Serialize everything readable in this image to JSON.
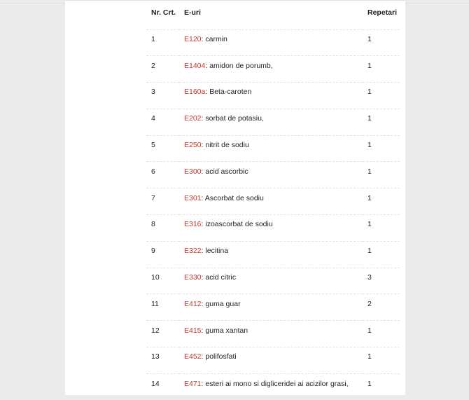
{
  "table": {
    "headers": [
      "Nr. Crt.",
      "E-uri",
      "Repetari"
    ],
    "rows": [
      {
        "nr": "1",
        "code": "E120",
        "name": ": carmin",
        "rep": "1"
      },
      {
        "nr": "2",
        "code": "E1404",
        "name": ": amidon de porumb,",
        "rep": "1"
      },
      {
        "nr": "3",
        "code": "E160a",
        "name": ": Beta-caroten",
        "rep": "1"
      },
      {
        "nr": "4",
        "code": "E202",
        "name": ": sorbat de potasiu,",
        "rep": "1"
      },
      {
        "nr": "5",
        "code": "E250",
        "name": ": nitrit de sodiu",
        "rep": "1"
      },
      {
        "nr": "6",
        "code": "E300",
        "name": ": acid ascorbic",
        "rep": "1"
      },
      {
        "nr": "7",
        "code": "E301",
        "name": ": Ascorbat de sodiu",
        "rep": "1"
      },
      {
        "nr": "8",
        "code": "E316",
        "name": ": izoascorbat de sodiu",
        "rep": "1"
      },
      {
        "nr": "9",
        "code": "E322",
        "name": ": lecitina",
        "rep": "1"
      },
      {
        "nr": "10",
        "code": "E330",
        "name": ": acid citric",
        "rep": "3"
      },
      {
        "nr": "11",
        "code": "E412",
        "name": ": guma guar",
        "rep": "2"
      },
      {
        "nr": "12",
        "code": "E415",
        "name": ": guma xantan",
        "rep": "1"
      },
      {
        "nr": "13",
        "code": "E452",
        "name": ": polifosfati",
        "rep": "1"
      },
      {
        "nr": "14",
        "code": "E471",
        "name": ": esteri ai mono si digliceridei ai acizilor grasi,",
        "rep": "1"
      }
    ]
  },
  "colors": {
    "link": "#c0392b",
    "background": "#ebebeb"
  }
}
